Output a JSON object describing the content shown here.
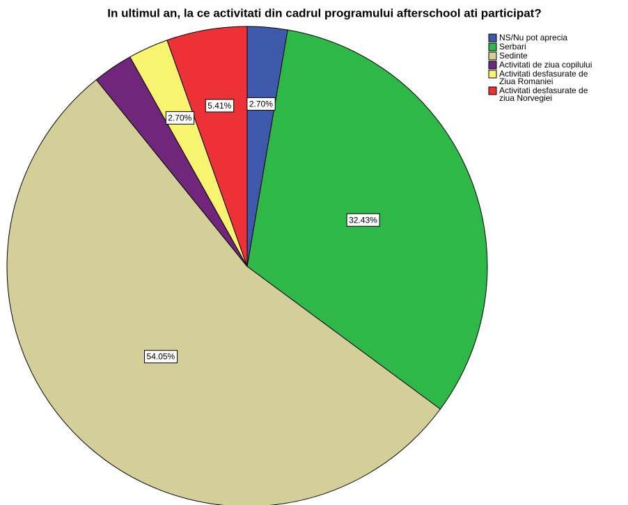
{
  "chart_data": {
    "type": "pie",
    "title": "In ultimul an, la ce activitati din cadrul programului afterschool ati participat?",
    "categories": [
      "NS/Nu pot aprecia",
      "Serbari",
      "Sedinte",
      "Activitati de ziua copilului",
      "Activitati desfasurate de\nZiua Romaniei",
      "Activitati desfasurate de\nziua Norvegiei"
    ],
    "values": [
      2.7,
      32.43,
      54.05,
      2.7,
      2.7,
      5.41
    ],
    "value_labels": [
      "2.70%",
      "32.43%",
      "54.05%",
      null,
      "2.70%",
      "5.41%"
    ],
    "colors": [
      "#3e58ac",
      "#2eb848",
      "#d4ce98",
      "#70267a",
      "#f9f470",
      "#ed3237"
    ],
    "legend": "upper right"
  }
}
